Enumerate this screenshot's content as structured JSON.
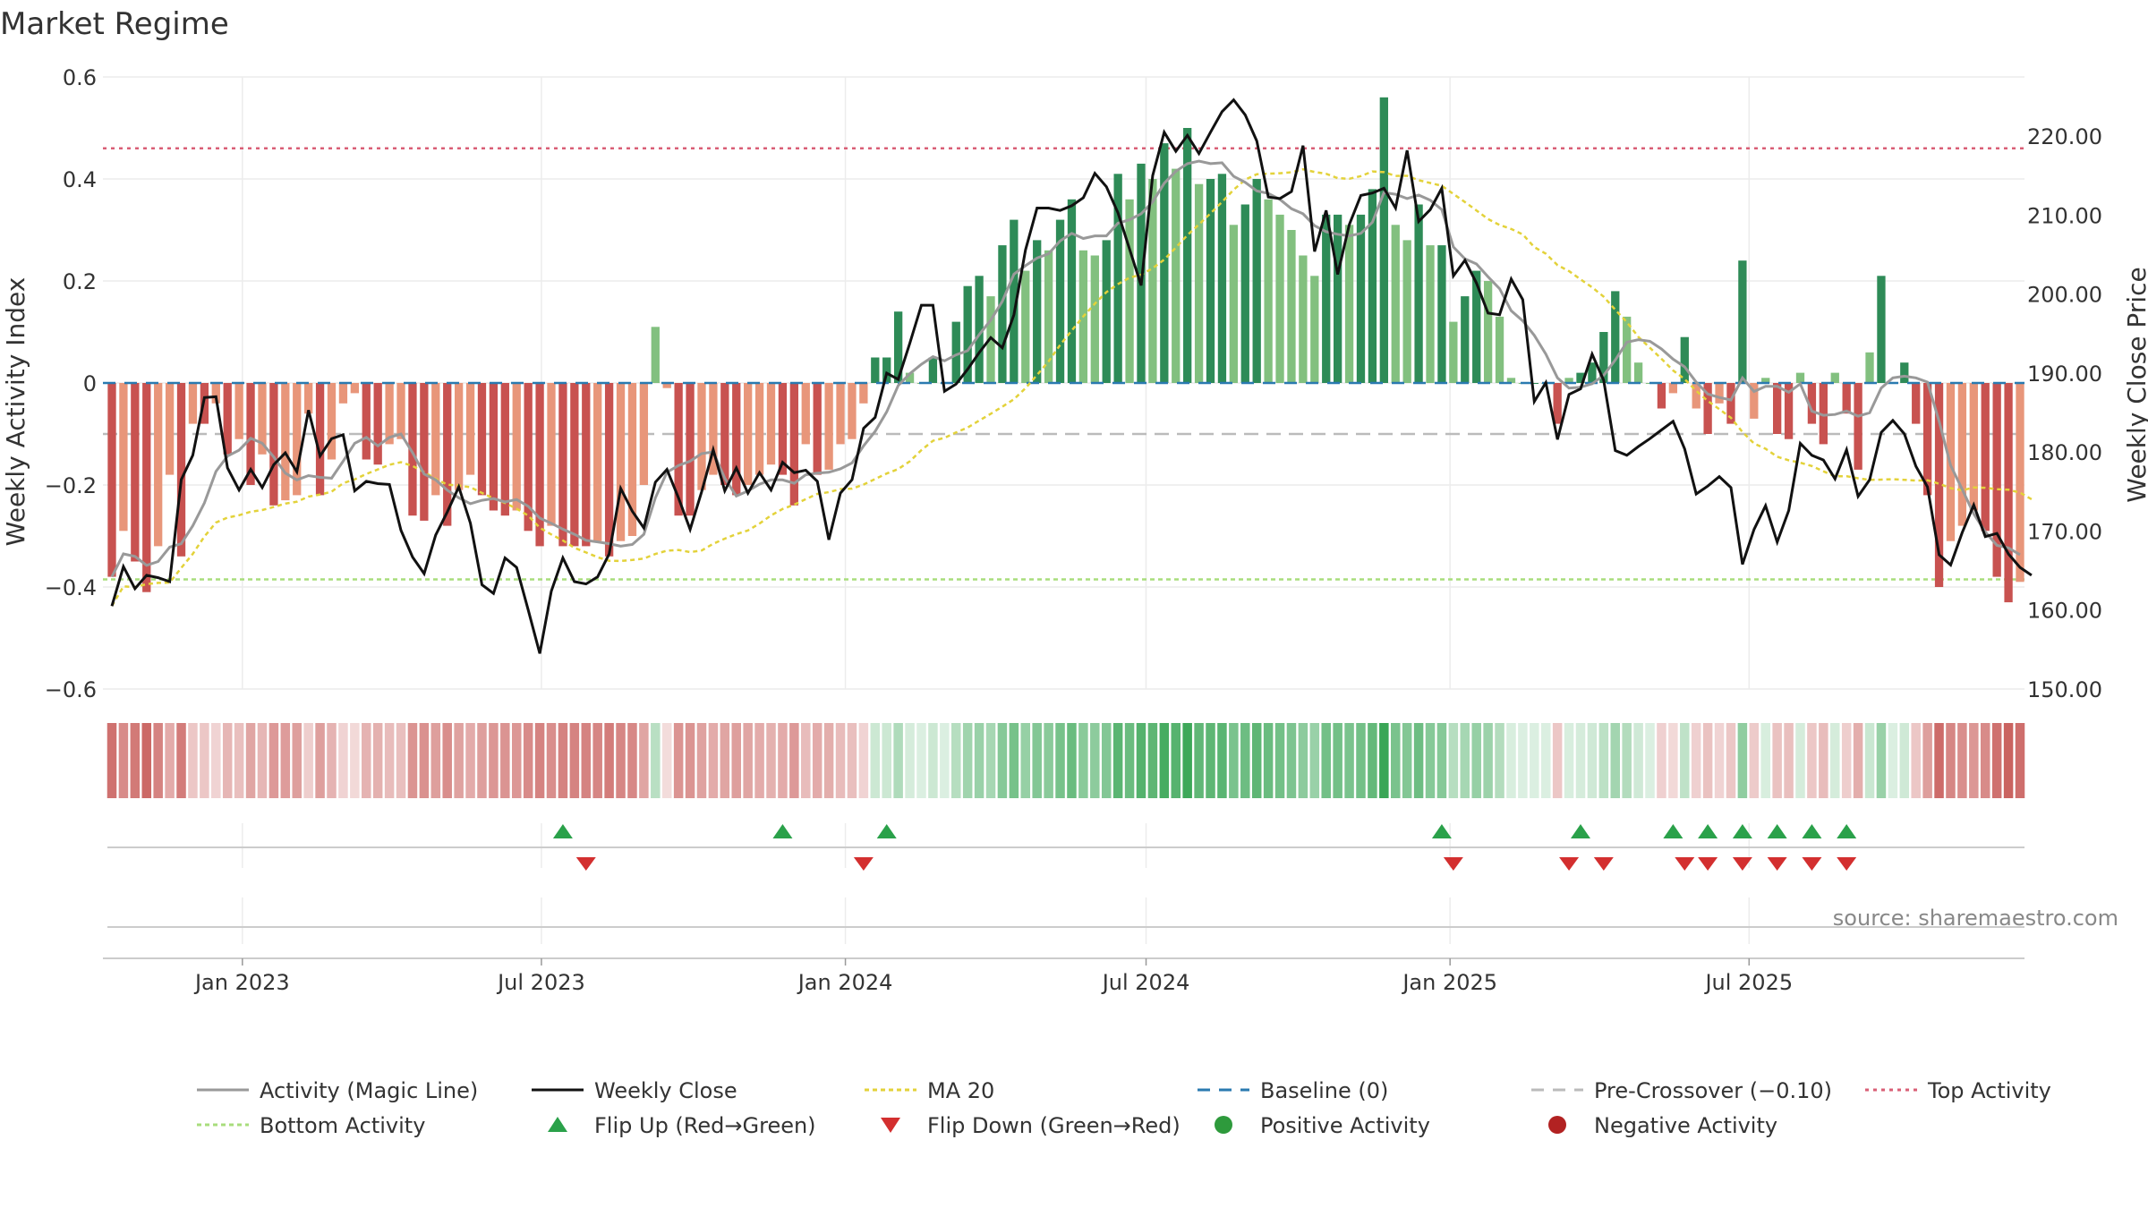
{
  "chart_data": {
    "type": "bar",
    "title": "Market Regime",
    "ylabel_left": "Weekly Activity Index",
    "ylabel_right": "Weekly Close Price",
    "source": "source: sharemaestro.com",
    "x_start": "2022-10-14",
    "x_step_days": 7,
    "ylim_left": [
      -0.6,
      0.6
    ],
    "ylim_right": [
      150,
      227.5
    ],
    "yticks_left": [
      {
        "v": 0.6,
        "label": "0.6"
      },
      {
        "v": 0.4,
        "label": "0.4"
      },
      {
        "v": 0.2,
        "label": "0.2"
      },
      {
        "v": 0,
        "label": "0"
      },
      {
        "v": -0.2,
        "label": "−0.2"
      },
      {
        "v": -0.4,
        "label": "−0.4"
      },
      {
        "v": -0.6,
        "label": "−0.6"
      }
    ],
    "yticks_right": [
      {
        "v": 220,
        "label": "220.00"
      },
      {
        "v": 210,
        "label": "210.00"
      },
      {
        "v": 200,
        "label": "200.00"
      },
      {
        "v": 190,
        "label": "190.00"
      },
      {
        "v": 180,
        "label": "180.00"
      },
      {
        "v": 170,
        "label": "170.00"
      },
      {
        "v": 160,
        "label": "160.00"
      },
      {
        "v": 150,
        "label": "150.00"
      }
    ],
    "xticks": [
      {
        "date": "2023-01-01",
        "label": "Jan 2023"
      },
      {
        "date": "2023-07-01",
        "label": "Jul 2023"
      },
      {
        "date": "2024-01-01",
        "label": "Jan 2024"
      },
      {
        "date": "2024-07-01",
        "label": "Jul 2024"
      },
      {
        "date": "2025-01-01",
        "label": "Jan 2025"
      },
      {
        "date": "2025-07-01",
        "label": "Jul 2025"
      }
    ],
    "reference_lines": {
      "baseline": 0,
      "pre_crossover": -0.1,
      "top_activity": 0.46,
      "bottom_activity": -0.385
    },
    "activity": [
      -0.38,
      -0.29,
      -0.35,
      -0.41,
      -0.32,
      -0.18,
      -0.34,
      -0.08,
      -0.08,
      -0.04,
      -0.14,
      -0.11,
      -0.2,
      -0.14,
      -0.24,
      -0.23,
      -0.22,
      -0.06,
      -0.22,
      -0.15,
      -0.04,
      -0.02,
      -0.15,
      -0.16,
      -0.12,
      -0.11,
      -0.26,
      -0.27,
      -0.22,
      -0.28,
      -0.21,
      -0.18,
      -0.22,
      -0.25,
      -0.26,
      -0.25,
      -0.29,
      -0.32,
      -0.28,
      -0.32,
      -0.32,
      -0.32,
      -0.31,
      -0.34,
      -0.31,
      -0.3,
      -0.2,
      0.11,
      -0.01,
      -0.26,
      -0.26,
      -0.21,
      -0.18,
      -0.2,
      -0.22,
      -0.2,
      -0.18,
      -0.16,
      -0.18,
      -0.24,
      -0.12,
      -0.18,
      -0.17,
      -0.12,
      -0.11,
      -0.04,
      0.05,
      0.05,
      0.14,
      0.02,
      0.0,
      0.05,
      0.0,
      0.12,
      0.19,
      0.21,
      0.17,
      0.27,
      0.32,
      0.22,
      0.28,
      0.26,
      0.32,
      0.36,
      0.26,
      0.25,
      0.28,
      0.41,
      0.36,
      0.43,
      0.4,
      0.47,
      0.42,
      0.5,
      0.39,
      0.4,
      0.41,
      0.31,
      0.35,
      0.4,
      0.36,
      0.33,
      0.3,
      0.25,
      0.21,
      0.33,
      0.33,
      0.31,
      0.33,
      0.38,
      0.56,
      0.31,
      0.28,
      0.35,
      0.27,
      0.27,
      0.12,
      0.17,
      0.22,
      0.2,
      0.13,
      0.01,
      0.0,
      0.0,
      0.0,
      -0.08,
      0.01,
      0.02,
      0.04,
      0.1,
      0.18,
      0.13,
      0.04,
      0.0,
      -0.05,
      -0.02,
      0.09,
      -0.05,
      -0.1,
      -0.04,
      -0.08,
      0.24,
      -0.07,
      0.01,
      -0.1,
      -0.11,
      0.02,
      -0.08,
      -0.12,
      0.02,
      -0.06,
      -0.17,
      0.06,
      0.21,
      0.0,
      0.04,
      -0.08,
      -0.22,
      -0.4,
      -0.31,
      -0.28,
      -0.25,
      -0.29,
      -0.38,
      -0.43,
      -0.39
    ],
    "weekly_close": [
      160.5,
      165.5,
      162.7,
      164.4,
      164.1,
      163.6,
      176.5,
      179.6,
      186.9,
      187.0,
      178.0,
      175.2,
      177.8,
      175.5,
      178.4,
      179.9,
      177.5,
      185.3,
      179.5,
      181.7,
      182.2,
      175.1,
      176.3,
      176.0,
      175.9,
      170.1,
      166.7,
      164.6,
      169.5,
      172.4,
      175.6,
      171.0,
      163.2,
      162.1,
      166.6,
      165.4,
      160.0,
      154.5,
      162.4,
      166.6,
      163.6,
      163.3,
      164.2,
      167.1,
      175.4,
      172.5,
      170.4,
      176.2,
      177.8,
      174.2,
      170.2,
      175.0,
      180.3,
      175.1,
      178.0,
      174.8,
      177.4,
      175.2,
      178.7,
      177.4,
      177.7,
      176.3,
      168.9,
      174.8,
      176.5,
      183.0,
      184.4,
      190.0,
      189.2,
      193.8,
      198.6,
      198.6,
      187.7,
      188.6,
      190.5,
      192.6,
      194.5,
      193.2,
      197.4,
      205.6,
      210.9,
      210.9,
      210.6,
      211.2,
      212.2,
      215.3,
      213.6,
      210.3,
      205.7,
      201.1,
      215.0,
      220.5,
      218.1,
      220.1,
      217.8,
      220.5,
      223.1,
      224.6,
      222.7,
      219.4,
      212.3,
      212.1,
      213.0,
      218.8,
      205.4,
      210.6,
      202.5,
      208.8,
      212.5,
      212.8,
      213.4,
      210.9,
      218.2,
      209.2,
      210.7,
      213.4,
      202.3,
      204.3,
      201.4,
      197.6,
      197.4,
      201.9,
      199.3,
      186.4,
      188.8,
      181.6,
      187.3,
      188.0,
      192.4,
      189.1,
      180.2,
      179.6,
      180.7,
      181.7,
      182.8,
      183.9,
      180.4,
      174.7,
      175.7,
      176.9,
      175.5,
      165.8,
      170.2,
      173.2,
      168.6,
      172.6,
      181.1,
      179.6,
      179.0,
      176.6,
      180.3,
      174.4,
      176.5,
      182.5,
      184.0,
      182.3,
      178.2,
      175.6,
      167.0,
      165.7,
      169.8,
      173.3,
      169.3,
      169.7,
      167.1,
      165.4,
      164.4
    ],
    "flip_up_dates": [
      "2023-07-14",
      "2023-11-24",
      "2024-01-26",
      "2024-12-27",
      "2025-03-21",
      "2025-05-16",
      "2025-06-06",
      "2025-06-27",
      "2025-07-18",
      "2025-08-08",
      "2025-08-29"
    ],
    "flip_down_dates": [
      "2023-07-28",
      "2024-01-12",
      "2025-01-03",
      "2025-03-14",
      "2025-04-04",
      "2025-05-23",
      "2025-06-06",
      "2025-06-27",
      "2025-07-18",
      "2025-08-08",
      "2025-08-29"
    ],
    "legend": [
      {
        "key": "magic",
        "label": "Activity (Magic Line)"
      },
      {
        "key": "close",
        "label": "Weekly Close"
      },
      {
        "key": "ma20",
        "label": "MA 20"
      },
      {
        "key": "baseline",
        "label": "Baseline (0)"
      },
      {
        "key": "precross",
        "label": "Pre-Crossover (−0.10)"
      },
      {
        "key": "top",
        "label": "Top Activity"
      },
      {
        "key": "bottom",
        "label": "Bottom Activity"
      },
      {
        "key": "flipup",
        "label": "Flip Up (Red→Green)"
      },
      {
        "key": "flipdown",
        "label": "Flip Down (Green→Red)"
      },
      {
        "key": "pos",
        "label": "Positive Activity"
      },
      {
        "key": "neg",
        "label": "Negative Activity"
      }
    ],
    "colors": {
      "pos_dark": "#2e8b57",
      "pos_light": "#82c07f",
      "neg_dark": "#c85250",
      "neg_light": "#e8967a",
      "magic": "#999999",
      "close": "#111111",
      "ma20": "#e3d23a",
      "baseline": "#2a7ab0",
      "precross": "#bbbbbb",
      "top": "#d95f76",
      "bottom": "#a8dd7c",
      "flipup": "#2aa14a",
      "flipdown": "#d32f2f",
      "pos_dot": "#2e9a3c",
      "neg_dot": "#b22222"
    }
  }
}
